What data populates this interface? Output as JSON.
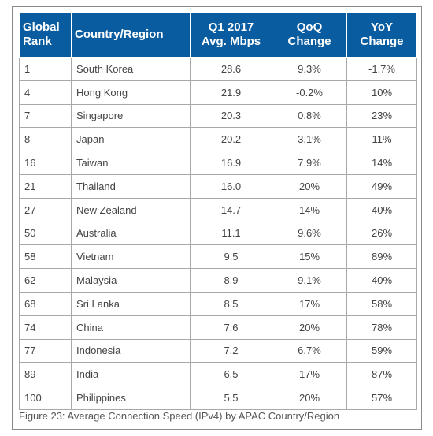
{
  "chart_data": {
    "type": "table",
    "headers": {
      "rank": [
        "Global",
        "Rank"
      ],
      "country": [
        "Country/Region"
      ],
      "speed": [
        "Q1 2017",
        "Avg. Mbps"
      ],
      "qoq": [
        "QoQ",
        "Change"
      ],
      "yoy": [
        "YoY",
        "Change"
      ]
    },
    "rows": [
      {
        "rank": "1",
        "country": "South Korea",
        "speed": "28.6",
        "qoq": "9.3%",
        "yoy": "-1.7%"
      },
      {
        "rank": "4",
        "country": "Hong Kong",
        "speed": "21.9",
        "qoq": "-0.2%",
        "yoy": "10%"
      },
      {
        "rank": "7",
        "country": "Singapore",
        "speed": "20.3",
        "qoq": "0.8%",
        "yoy": "23%"
      },
      {
        "rank": "8",
        "country": "Japan",
        "speed": "20.2",
        "qoq": "3.1%",
        "yoy": "11%"
      },
      {
        "rank": "16",
        "country": "Taiwan",
        "speed": "16.9",
        "qoq": "7.9%",
        "yoy": "14%"
      },
      {
        "rank": "21",
        "country": "Thailand",
        "speed": "16.0",
        "qoq": "20%",
        "yoy": "49%"
      },
      {
        "rank": "27",
        "country": "New Zealand",
        "speed": "14.7",
        "qoq": "14%",
        "yoy": "40%"
      },
      {
        "rank": "50",
        "country": "Australia",
        "speed": "11.1",
        "qoq": "9.6%",
        "yoy": "26%"
      },
      {
        "rank": "58",
        "country": "Vietnam",
        "speed": "9.5",
        "qoq": "15%",
        "yoy": "89%"
      },
      {
        "rank": "62",
        "country": "Malaysia",
        "speed": "8.9",
        "qoq": "9.1%",
        "yoy": "40%"
      },
      {
        "rank": "68",
        "country": "Sri Lanka",
        "speed": "8.5",
        "qoq": "17%",
        "yoy": "58%"
      },
      {
        "rank": "74",
        "country": "China",
        "speed": "7.6",
        "qoq": "20%",
        "yoy": "78%"
      },
      {
        "rank": "77",
        "country": "Indonesia",
        "speed": "7.2",
        "qoq": "6.7%",
        "yoy": "59%"
      },
      {
        "rank": "89",
        "country": "India",
        "speed": "6.5",
        "qoq": "17%",
        "yoy": "87%"
      },
      {
        "rank": "100",
        "country": "Philippines",
        "speed": "5.5",
        "qoq": "20%",
        "yoy": "57%"
      }
    ],
    "caption": "Figure 23: Average Connection Speed (IPv4) by APAC Country/Region",
    "header_color": "#0a5ca0"
  }
}
